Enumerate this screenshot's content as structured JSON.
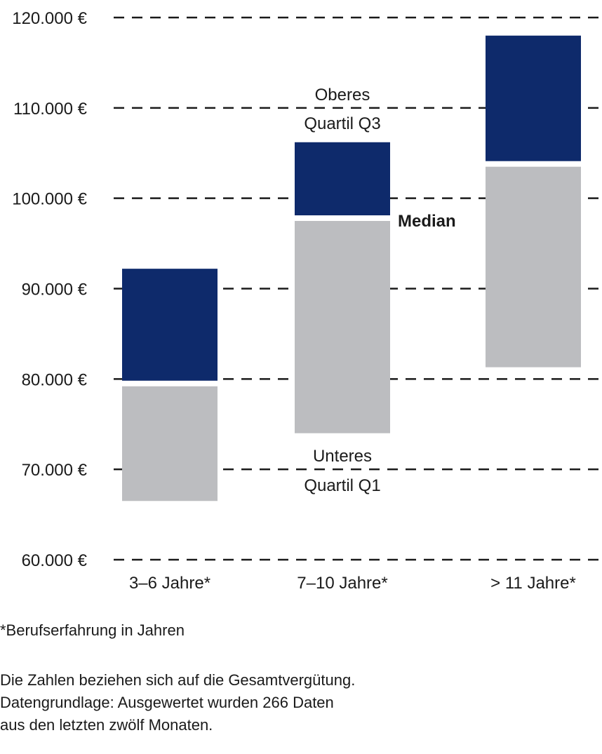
{
  "chart_data": {
    "type": "bar",
    "subtype": "stacked-range",
    "categories": [
      "3–6 Jahre*",
      "7–10 Jahre*",
      "> 11 Jahre*"
    ],
    "series": [
      {
        "key": "q1",
        "values": [
          66500,
          74000,
          81300
        ]
      },
      {
        "key": "median",
        "values": [
          79500,
          97800,
          103800
        ]
      },
      {
        "key": "q3",
        "values": [
          92200,
          106200,
          118000
        ]
      }
    ],
    "yticks": [
      "60.000 €",
      "70.000 €",
      "80.000 €",
      "90.000 €",
      "100.000 €",
      "110.000 €",
      "120.000 €"
    ],
    "ylim": [
      60000,
      120000
    ],
    "grid": "dashed horizontal",
    "colors": {
      "lower": "#bcbdc0",
      "upper": "#0e2a6b"
    },
    "annotations": {
      "upper_line1": "Oberes",
      "upper_line2": "Quartil Q3",
      "median": "Median",
      "lower_line1": "Unteres",
      "lower_line2": "Quartil Q1"
    }
  },
  "footnote": "*Berufserfahrung in Jahren",
  "note_lines": [
    "Die Zahlen beziehen sich auf die Gesamtvergütung.",
    "Datengrundlage: Ausgewertet wurden 266 Daten",
    "aus den letzten zwölf Monaten."
  ]
}
